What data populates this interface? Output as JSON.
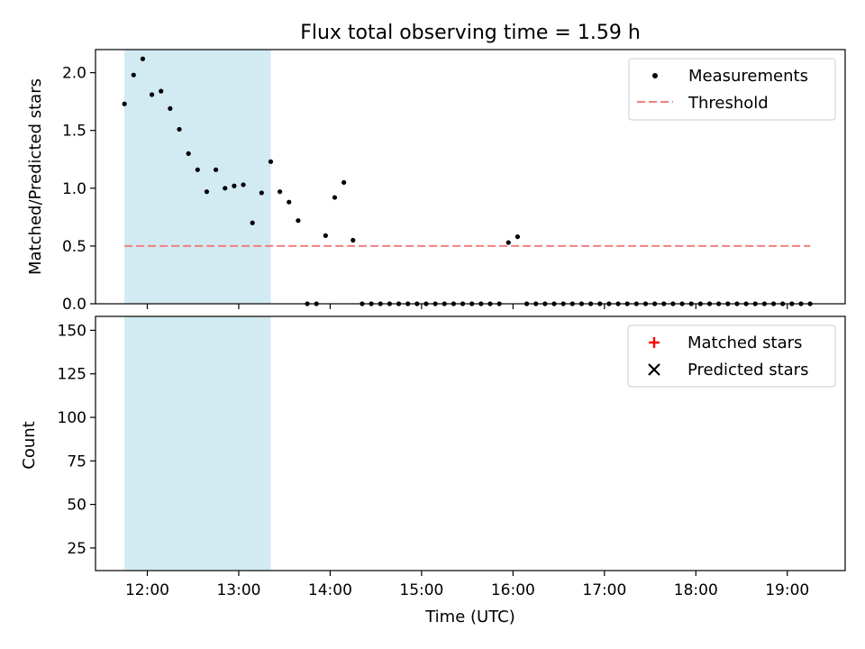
{
  "figure": {
    "title": "Flux total observing time = 1.59 h"
  },
  "chart_data": [
    {
      "type": "scatter",
      "ylabel": "Matched/Predicted stars",
      "xlabel": "",
      "xlim": [
        "11:26",
        "19:38"
      ],
      "ylim": [
        0,
        2.2
      ],
      "yticks": [
        "0.0",
        "0.5",
        "1.0",
        "1.5",
        "2.0"
      ],
      "xticks": [
        "12:00",
        "13:00",
        "14:00",
        "15:00",
        "16:00",
        "17:00",
        "18:00",
        "19:00"
      ],
      "shaded_interval": {
        "start": "11:45",
        "end": "13:21",
        "color": "#add8e6"
      },
      "legend_position": "top-right",
      "series": [
        {
          "name": "Measurements",
          "marker": "dot",
          "color": "#000000",
          "x": [
            "11:45",
            "11:51",
            "11:57",
            "12:03",
            "12:09",
            "12:15",
            "12:21",
            "12:27",
            "12:33",
            "12:39",
            "12:45",
            "12:51",
            "12:57",
            "13:03",
            "13:09",
            "13:15",
            "13:21",
            "13:27",
            "13:33",
            "13:39",
            "13:45",
            "13:51",
            "13:57",
            "14:03",
            "14:09",
            "14:15",
            "14:21",
            "14:27",
            "14:33",
            "14:39",
            "14:45",
            "14:51",
            "14:57",
            "15:03",
            "15:09",
            "15:15",
            "15:21",
            "15:27",
            "15:33",
            "15:39",
            "15:45",
            "15:51",
            "15:57",
            "16:03",
            "16:09",
            "16:15",
            "16:21",
            "16:27",
            "16:33",
            "16:39",
            "16:45",
            "16:51",
            "16:57",
            "17:03",
            "17:09",
            "17:15",
            "17:21",
            "17:27",
            "17:33",
            "17:39",
            "17:45",
            "17:51",
            "17:57",
            "18:03",
            "18:09",
            "18:15",
            "18:21",
            "18:27",
            "18:33",
            "18:39",
            "18:45",
            "18:51",
            "18:57",
            "19:03",
            "19:09",
            "19:15"
          ],
          "y": [
            1.73,
            1.98,
            2.12,
            1.81,
            1.84,
            1.69,
            1.51,
            1.3,
            1.16,
            0.97,
            1.16,
            1.0,
            1.02,
            1.03,
            0.7,
            0.96,
            1.23,
            0.97,
            0.88,
            0.72,
            0.0,
            0.0,
            0.59,
            0.92,
            1.05,
            0.55,
            0.0,
            0.0,
            0.0,
            0.0,
            0.0,
            0.0,
            0.0,
            0.0,
            0.0,
            0.0,
            0.0,
            0.0,
            0.0,
            0.0,
            0.0,
            0.0,
            0.53,
            0.58,
            0.0,
            0.0,
            0.0,
            0.0,
            0.0,
            0.0,
            0.0,
            0.0,
            0.0,
            0.0,
            0.0,
            0.0,
            0.0,
            0.0,
            0.0,
            0.0,
            0.0,
            0.0,
            0.0,
            0.0,
            0.0,
            0.0,
            0.0,
            0.0,
            0.0,
            0.0,
            0.0,
            0.0,
            0.0,
            0.0,
            0.0,
            0.0
          ]
        },
        {
          "name": "Threshold",
          "type": "line",
          "style": "dashed",
          "color": "#f08080",
          "x": [
            "11:45",
            "19:15"
          ],
          "y": [
            0.5,
            0.5
          ]
        }
      ]
    },
    {
      "type": "scatter",
      "ylabel": "Count",
      "xlabel": "Time (UTC)",
      "xlim": [
        "11:26",
        "19:38"
      ],
      "ylim": [
        12,
        158
      ],
      "yticks": [
        "25",
        "50",
        "75",
        "100",
        "125",
        "150"
      ],
      "xticks": [
        "12:00",
        "13:00",
        "14:00",
        "15:00",
        "16:00",
        "17:00",
        "18:00",
        "19:00"
      ],
      "shaded_interval": {
        "start": "11:45",
        "end": "13:21",
        "color": "#add8e6"
      },
      "legend_position": "top-right",
      "series": [
        {
          "name": "Matched stars",
          "marker": "plus",
          "color": "#ff0000",
          "x": [],
          "y": []
        },
        {
          "name": "Predicted stars",
          "marker": "x",
          "color": "#000000",
          "x": [],
          "y": []
        }
      ]
    }
  ]
}
